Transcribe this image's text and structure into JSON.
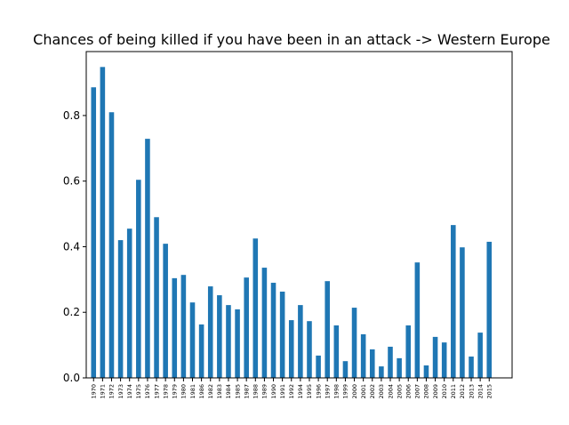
{
  "chart_data": {
    "type": "bar",
    "title": "Chances of being killed if you have been in an attack -> Western Europe",
    "categories": [
      "1970",
      "1971",
      "1972",
      "1973",
      "1974",
      "1975",
      "1976",
      "1977",
      "1978",
      "1979",
      "1980",
      "1981",
      "1986",
      "1982",
      "1983",
      "1984",
      "1985",
      "1987",
      "1988",
      "1989",
      "1990",
      "1991",
      "1992",
      "1994",
      "1995",
      "1996",
      "1997",
      "1998",
      "1999",
      "2000",
      "2001",
      "2002",
      "2003",
      "2004",
      "2005",
      "2006",
      "2007",
      "2008",
      "2009",
      "2010",
      "2011",
      "2012",
      "2013",
      "2014",
      "2015"
    ],
    "values": [
      0.886,
      0.948,
      0.81,
      0.42,
      0.455,
      0.604,
      0.729,
      0.49,
      0.409,
      0.304,
      0.314,
      0.23,
      0.163,
      0.279,
      0.252,
      0.222,
      0.209,
      0.306,
      0.425,
      0.336,
      0.29,
      0.263,
      0.176,
      0.222,
      0.173,
      0.068,
      0.295,
      0.16,
      0.051,
      0.214,
      0.133,
      0.087,
      0.035,
      0.095,
      0.06,
      0.16,
      0.352,
      0.038,
      0.125,
      0.108,
      0.466,
      0.398,
      0.065,
      0.138,
      0.415
    ],
    "color": "#1f77b4",
    "ylim": [
      0,
      0.995
    ],
    "yticks": [
      {
        "value": 0,
        "label": "0.0"
      },
      0.2,
      0.4,
      0.6,
      0.8
    ]
  }
}
